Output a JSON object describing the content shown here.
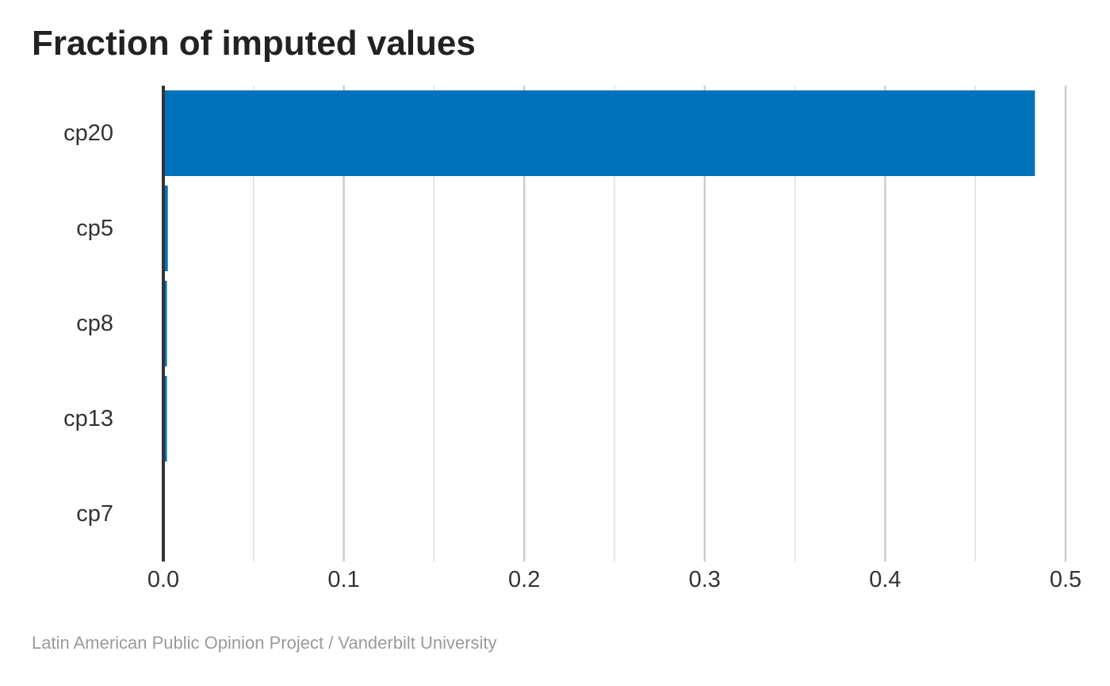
{
  "chart_data": {
    "type": "bar",
    "orientation": "horizontal",
    "title": "Fraction of imputed values",
    "caption": "Latin American Public Opinion Project / Vanderbilt University",
    "categories": [
      "cp20",
      "cp5",
      "cp8",
      "cp13",
      "cp7"
    ],
    "values": [
      0.483,
      0.0025,
      0.002,
      0.002,
      0.0
    ],
    "xlabel": "",
    "ylabel": "",
    "xlim": [
      0,
      0.5
    ],
    "x_ticks": [
      0.0,
      0.1,
      0.2,
      0.3,
      0.4,
      0.5
    ],
    "x_tick_labels": [
      "0.0",
      "0.1",
      "0.2",
      "0.3",
      "0.4",
      "0.5"
    ],
    "x_minor_ticks": [
      0.05,
      0.15,
      0.25,
      0.35,
      0.45
    ],
    "grid": "vertical",
    "legend": "none",
    "bar_color": "#0072bb",
    "axis_color": "#333333",
    "grid_major_color": "#cccccc",
    "grid_minor_color": "#dddddd"
  }
}
